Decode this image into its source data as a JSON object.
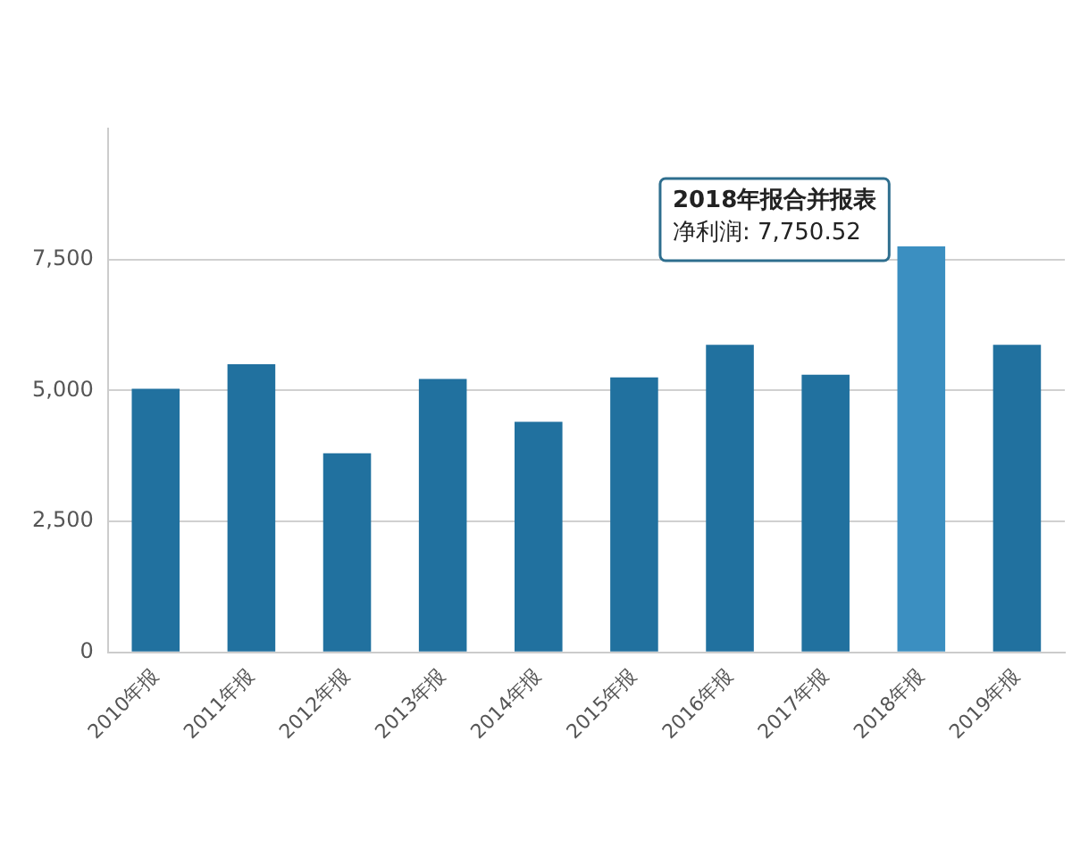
{
  "chart_data": {
    "type": "bar",
    "categories": [
      "2010年报",
      "2011年报",
      "2012年报",
      "2013年报",
      "2014年报",
      "2015年报",
      "2016年报",
      "2017年报",
      "2018年报",
      "2019年报"
    ],
    "values": [
      5030,
      5500,
      3800,
      5220,
      4400,
      5250,
      5870,
      5300,
      7750.52,
      5870
    ],
    "colors": [
      "#21719f",
      "#21719f",
      "#21719f",
      "#21719f",
      "#21719f",
      "#21719f",
      "#21719f",
      "#21719f",
      "#3b8fc1",
      "#21719f"
    ],
    "ylim": [
      0,
      10000
    ],
    "yticks": [
      0,
      {
        "value": 2500,
        "label": "2,500"
      },
      {
        "value": 5000,
        "label": "5,000"
      },
      {
        "value": 7500,
        "label": "7,500"
      }
    ],
    "grid": "y",
    "legend": false,
    "annotations": [
      {
        "text": "2018年报合并报表",
        "x": "2018年报",
        "y": 7750.52
      },
      {
        "text": "净利润: 7,750.52",
        "x": "2018年报",
        "y": 7750.52
      }
    ]
  }
}
